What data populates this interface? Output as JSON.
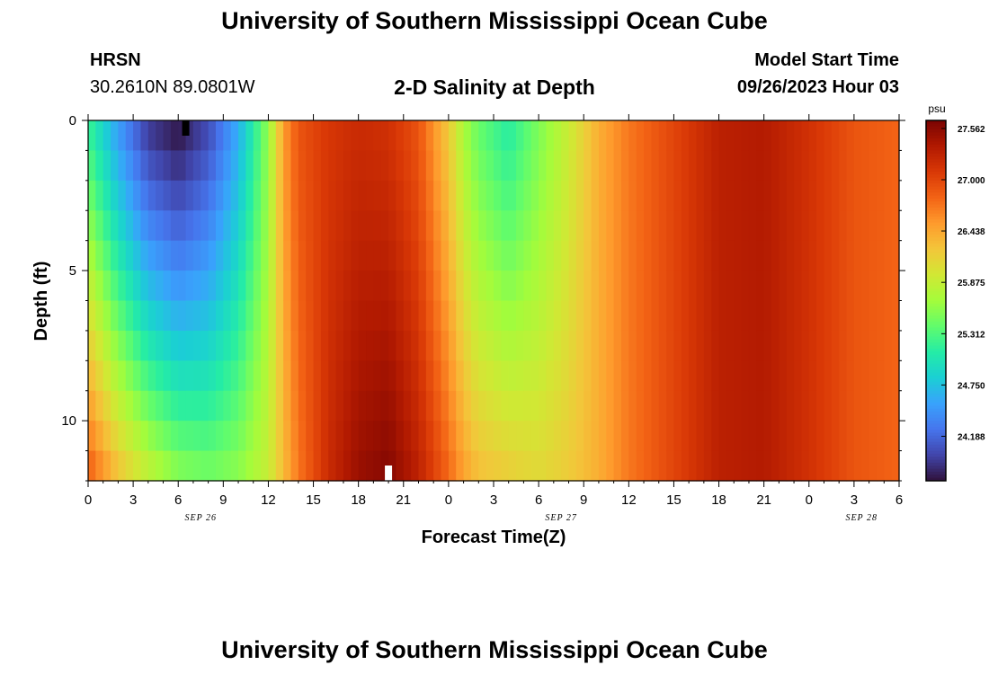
{
  "header": {
    "title": "University of Southern Mississippi Ocean Cube",
    "station": "HRSN",
    "location": "30.2610N  89.0801W",
    "subtitle": "2-D Salinity at Depth",
    "start_label": "Model Start Time",
    "start_value": "09/26/2023 Hour 03"
  },
  "footer": {
    "title": "University of Southern Mississippi Ocean Cube"
  },
  "chart_data": {
    "type": "heatmap",
    "title": "2-D Salinity at Depth",
    "xlabel": "Forecast Time(Z)",
    "ylabel": "Depth (ft)",
    "x_tick_labels": [
      "0",
      "3",
      "6",
      "9",
      "12",
      "15",
      "18",
      "21",
      "0",
      "3",
      "6",
      "9",
      "12",
      "15",
      "18",
      "21",
      "0",
      "3",
      "6"
    ],
    "x_day_labels": [
      "SEP 26",
      "SEP 27",
      "SEP 28"
    ],
    "x_range_hours": [
      0,
      54
    ],
    "y_ticks": [
      0,
      5,
      10
    ],
    "y_range_ft": [
      0,
      12
    ],
    "colorbar": {
      "unit": "psu",
      "tick_labels": [
        "27.562",
        "27.000",
        "26.438",
        "25.875",
        "25.312",
        "24.750",
        "24.188"
      ],
      "tick_values": [
        27.562,
        27.0,
        26.438,
        25.875,
        25.312,
        24.75,
        24.188
      ],
      "range": [
        23.7,
        27.65
      ],
      "colors": [
        "#30123b",
        "#4145ab",
        "#4675ed",
        "#39a2fc",
        "#1bcfd4",
        "#24eca6",
        "#61fc6c",
        "#a4fc3b",
        "#d1e834",
        "#f3c63a",
        "#fe9b2d",
        "#f36315",
        "#d93806",
        "#b11901",
        "#7a0402"
      ]
    },
    "time_hours": [
      0,
      2,
      4,
      6,
      8,
      10,
      12,
      13,
      14,
      16,
      18,
      20,
      22,
      24,
      25,
      26,
      28,
      30,
      32,
      34,
      36,
      38,
      40,
      42,
      45,
      48,
      51,
      54
    ],
    "salinity_surface": [
      25.2,
      24.5,
      23.9,
      23.7,
      24.0,
      24.6,
      25.6,
      26.5,
      26.9,
      27.1,
      27.2,
      27.15,
      26.9,
      26.2,
      25.7,
      25.4,
      25.1,
      25.5,
      25.9,
      26.4,
      26.7,
      26.9,
      27.1,
      27.3,
      27.35,
      27.15,
      26.9,
      26.8
    ],
    "salinity_bottom": [
      26.9,
      26.3,
      25.9,
      25.6,
      25.5,
      25.6,
      25.9,
      26.3,
      26.7,
      27.2,
      27.5,
      27.6,
      27.3,
      26.8,
      26.5,
      26.3,
      26.2,
      26.1,
      26.2,
      26.4,
      26.7,
      26.9,
      27.1,
      27.3,
      27.35,
      27.15,
      26.9,
      26.8
    ],
    "markers": [
      {
        "hour": 6.5,
        "depth_ft": 0.0,
        "color": "#000000"
      },
      {
        "hour": 20.0,
        "depth_ft": 12.0,
        "color": "#ffffff"
      }
    ]
  }
}
